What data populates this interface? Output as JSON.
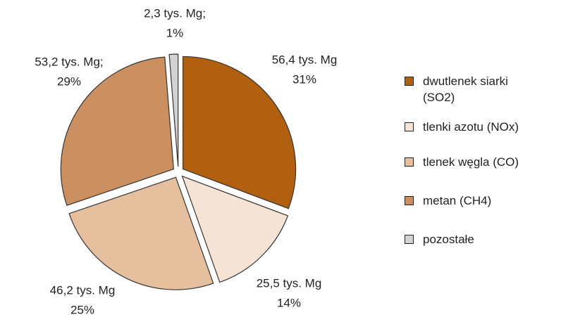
{
  "chart_data": {
    "type": "pie",
    "categories": [
      "dwutlenek siarki (SO2)",
      "tlenki azotu (NOx)",
      "tlenek węgla (CO)",
      "metan (CH4)",
      "pozostałe"
    ],
    "values": [
      56.4,
      25.5,
      46.2,
      53.2,
      2.3
    ],
    "value_labels": [
      "56,4 tys. Mg",
      "25,5 tys. Mg",
      "46,2 tys. Mg",
      "53,2 tys. Mg;",
      "2,3 tys. Mg;"
    ],
    "percent_labels": [
      "31%",
      "14%",
      "25%",
      "29%",
      "1%"
    ],
    "colors": [
      "#b0600f",
      "#f5e3d5",
      "#e6bf9f",
      "#cc9060",
      "#d3d3d3"
    ],
    "legend": "right"
  }
}
